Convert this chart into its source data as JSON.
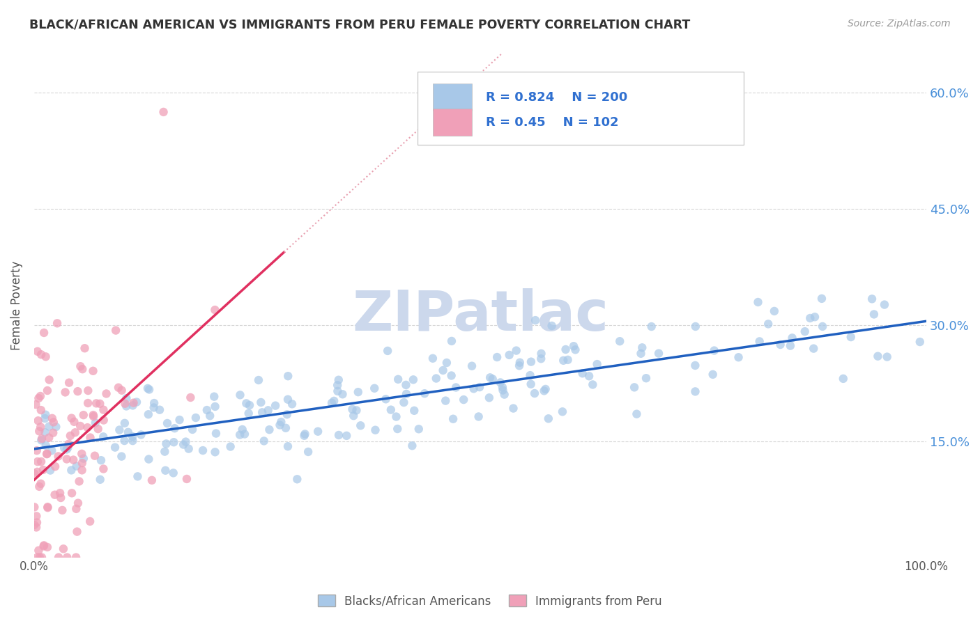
{
  "title": "BLACK/AFRICAN AMERICAN VS IMMIGRANTS FROM PERU FEMALE POVERTY CORRELATION CHART",
  "source": "Source: ZipAtlas.com",
  "ylabel": "Female Poverty",
  "watermark": "ZIPatlас",
  "R_blue": 0.824,
  "N_blue": 200,
  "R_pink": 0.45,
  "N_pink": 102,
  "blue_color": "#a8c8e8",
  "pink_color": "#f0a0b8",
  "blue_line_color": "#2060c0",
  "pink_line_color": "#e03060",
  "pink_line_dotted_color": "#e8a0b0",
  "title_color": "#333333",
  "legend_text_color": "#3070d0",
  "axis_label_color": "#555555",
  "tick_color": "#4a90d9",
  "background_color": "#ffffff",
  "grid_color": "#cccccc",
  "watermark_color": "#ccd8ec",
  "xlim": [
    0.0,
    1.0
  ],
  "ylim": [
    0.0,
    0.65
  ],
  "ytick_values": [
    0.15,
    0.3,
    0.45,
    0.6
  ],
  "ytick_labels": [
    "15.0%",
    "30.0%",
    "45.0%",
    "60.0%"
  ],
  "legend_label_blue": "Blacks/African Americans",
  "legend_label_pink": "Immigrants from Peru",
  "blue_intercept": 0.14,
  "blue_slope": 0.165,
  "pink_intercept": 0.1,
  "pink_slope": 1.05
}
